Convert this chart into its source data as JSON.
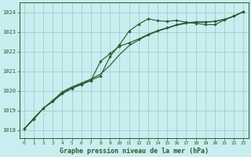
{
  "title": "Graphe pression niveau de la mer (hPa)",
  "background_color": "#c8eef0",
  "grid_color": "#9ecfcc",
  "line_color": "#2d5a2d",
  "xlim_min": -0.5,
  "xlim_max": 23.5,
  "ylim_min": 1017.6,
  "ylim_max": 1024.5,
  "yticks": [
    1018,
    1019,
    1020,
    1021,
    1022,
    1023,
    1024
  ],
  "xticks": [
    0,
    1,
    2,
    3,
    4,
    5,
    6,
    7,
    8,
    9,
    10,
    11,
    12,
    13,
    14,
    15,
    16,
    17,
    18,
    19,
    20,
    21,
    22,
    23
  ],
  "series_smooth": [
    1018.05,
    1018.55,
    1019.1,
    1019.5,
    1019.95,
    1020.2,
    1020.4,
    1020.6,
    1020.85,
    1021.3,
    1021.85,
    1022.3,
    1022.6,
    1022.85,
    1023.05,
    1023.2,
    1023.35,
    1023.45,
    1023.5,
    1023.5,
    1023.55,
    1023.65,
    1023.8,
    1024.05
  ],
  "series_peaked": [
    1018.05,
    1018.6,
    1019.1,
    1019.5,
    1019.9,
    1020.15,
    1020.35,
    1020.55,
    1020.75,
    1021.75,
    1022.35,
    1023.05,
    1023.4,
    1023.68,
    1023.58,
    1023.55,
    1023.6,
    1023.5,
    1023.45,
    1023.38,
    1023.38,
    1023.62,
    1023.82,
    1024.05
  ],
  "series_mid": [
    1018.05,
    1018.55,
    1019.1,
    1019.45,
    1019.85,
    1020.12,
    1020.32,
    1020.52,
    1021.5,
    1021.9,
    1022.28,
    1022.45,
    1022.65,
    1022.88,
    1023.08,
    1023.22,
    1023.38,
    1023.48,
    1023.52,
    1023.52,
    1023.55,
    1023.65,
    1023.82,
    1024.05
  ]
}
